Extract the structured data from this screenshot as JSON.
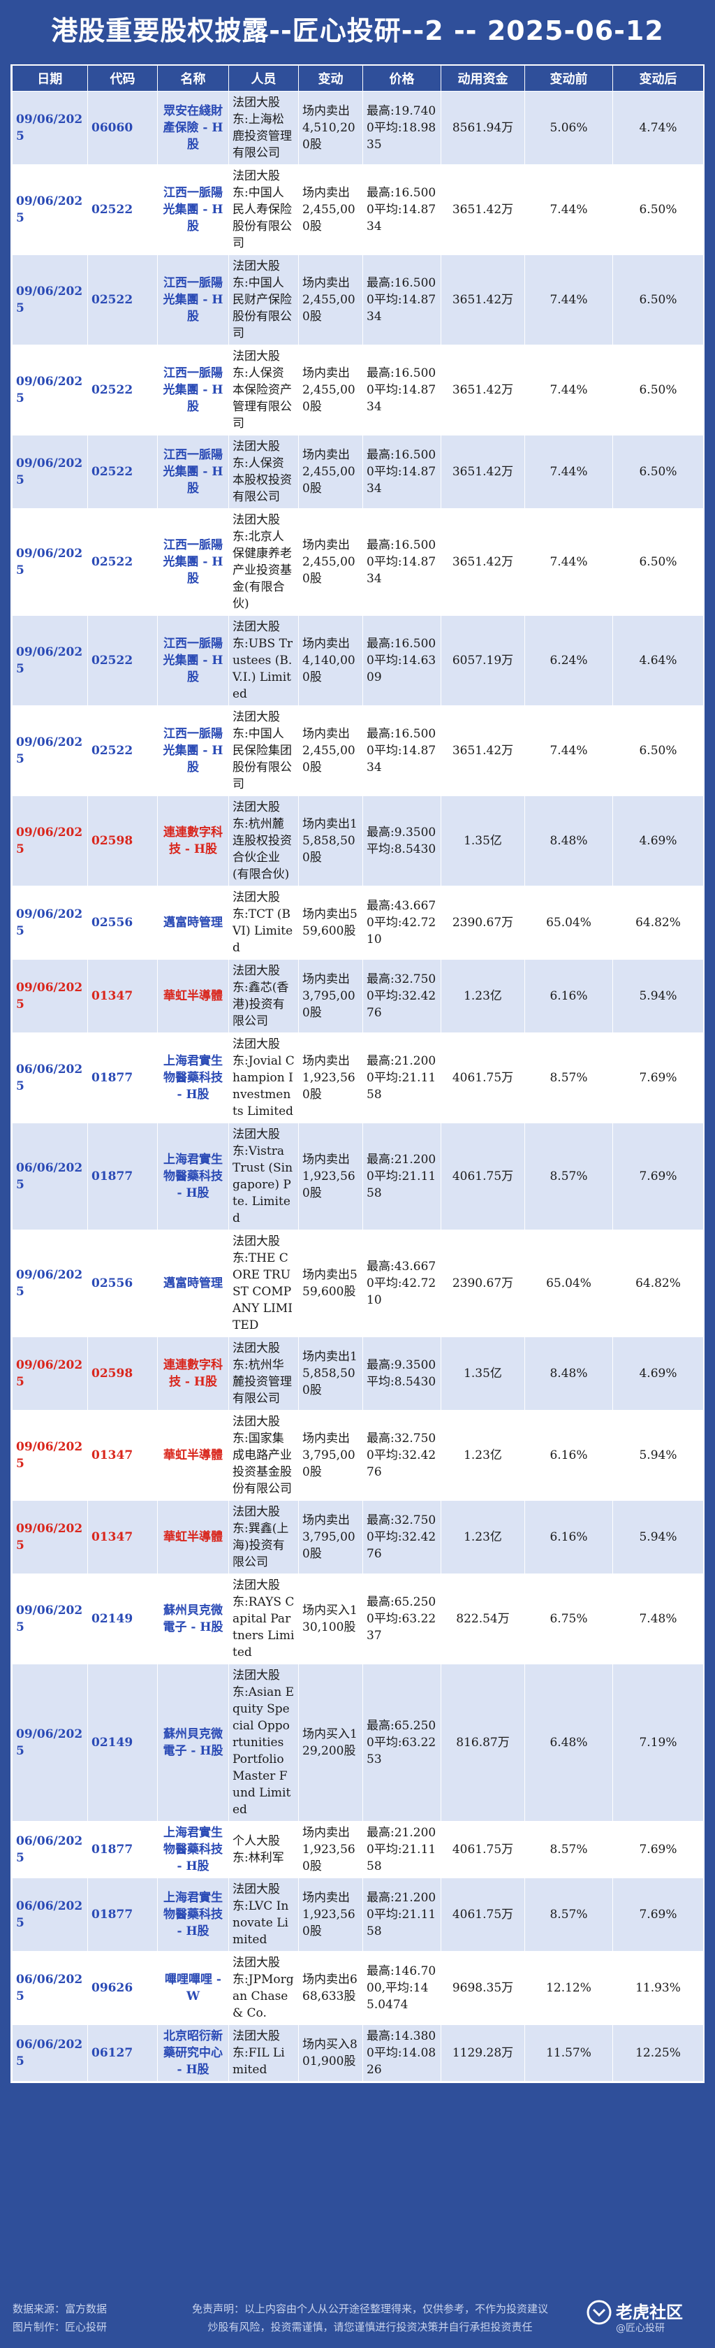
{
  "title": "港股重要股权披露--匠心投研--2 -- 2025-06-12",
  "headers": [
    "日期",
    "代码",
    "名称",
    "人员",
    "变动",
    "价格",
    "动用资金",
    "变动前",
    "变动后"
  ],
  "rows": [
    {
      "date": "09/06/2025",
      "code": "06060",
      "name": "眾安在綫財產保險 - H股",
      "person": "法团大股东:上海松鹿投资管理有限公司",
      "change": "场内卖出4,510,200股",
      "price": "最高:19.7400平均:18.9835",
      "funds": "8561.94万",
      "before": "5.06%",
      "after": "4.74%",
      "red": false
    },
    {
      "date": "09/06/2025",
      "code": "02522",
      "name": "江西一脈陽光集團 - H股",
      "person": "法团大股东:中国人民人寿保险股份有限公司",
      "change": "场内卖出2,455,000股",
      "price": "最高:16.5000平均:14.8734",
      "funds": "3651.42万",
      "before": "7.44%",
      "after": "6.50%",
      "red": false
    },
    {
      "date": "09/06/2025",
      "code": "02522",
      "name": "江西一脈陽光集團 - H股",
      "person": "法团大股东:中国人民财产保险股份有限公司",
      "change": "场内卖出2,455,000股",
      "price": "最高:16.5000平均:14.8734",
      "funds": "3651.42万",
      "before": "7.44%",
      "after": "6.50%",
      "red": false
    },
    {
      "date": "09/06/2025",
      "code": "02522",
      "name": "江西一脈陽光集團 - H股",
      "person": "法团大股东:人保资本保险资产管理有限公司",
      "change": "场内卖出2,455,000股",
      "price": "最高:16.5000平均:14.8734",
      "funds": "3651.42万",
      "before": "7.44%",
      "after": "6.50%",
      "red": false
    },
    {
      "date": "09/06/2025",
      "code": "02522",
      "name": "江西一脈陽光集團 - H股",
      "person": "法团大股东:人保资本股权投资有限公司",
      "change": "场内卖出2,455,000股",
      "price": "最高:16.5000平均:14.8734",
      "funds": "3651.42万",
      "before": "7.44%",
      "after": "6.50%",
      "red": false
    },
    {
      "date": "09/06/2025",
      "code": "02522",
      "name": "江西一脈陽光集團 - H股",
      "person": "法团大股东:北京人保健康养老产业投资基金(有限合伙)",
      "change": "场内卖出2,455,000股",
      "price": "最高:16.5000平均:14.8734",
      "funds": "3651.42万",
      "before": "7.44%",
      "after": "6.50%",
      "red": false
    },
    {
      "date": "09/06/2025",
      "code": "02522",
      "name": "江西一脈陽光集團 - H股",
      "person": "法团大股东:UBS Trustees (B.V.I.) Limited",
      "change": "场内卖出4,140,000股",
      "price": "最高:16.5000平均:14.6309",
      "funds": "6057.19万",
      "before": "6.24%",
      "after": "4.64%",
      "red": false
    },
    {
      "date": "09/06/2025",
      "code": "02522",
      "name": "江西一脈陽光集團 - H股",
      "person": "法团大股东:中国人民保险集团股份有限公司",
      "change": "场内卖出2,455,000股",
      "price": "最高:16.5000平均:14.8734",
      "funds": "3651.42万",
      "before": "7.44%",
      "after": "6.50%",
      "red": false
    },
    {
      "date": "09/06/2025",
      "code": "02598",
      "name": "連連數字科技 - H股",
      "person": "法团大股东:杭州麓连股权投资合伙企业(有限合伙)",
      "change": "场内卖出15,858,500股",
      "price": "最高:9.3500平均:8.5430",
      "funds": "1.35亿",
      "before": "8.48%",
      "after": "4.69%",
      "red": true
    },
    {
      "date": "09/06/2025",
      "code": "02556",
      "name": "邁富時管理",
      "person": "法团大股东:TCT (BVI) Limited",
      "change": "场内卖出559,600股",
      "price": "最高:43.6670平均:42.7210",
      "funds": "2390.67万",
      "before": "65.04%",
      "after": "64.82%",
      "red": false
    },
    {
      "date": "09/06/2025",
      "code": "01347",
      "name": "華虹半導體",
      "person": "法团大股东:鑫芯(香港)投资有限公司",
      "change": "场内卖出3,795,000股",
      "price": "最高:32.7500平均:32.4276",
      "funds": "1.23亿",
      "before": "6.16%",
      "after": "5.94%",
      "red": true
    },
    {
      "date": "06/06/2025",
      "code": "01877",
      "name": "上海君實生物醫藥科技 - H股",
      "person": "法团大股东:Jovial Champion Investments Limited",
      "change": "场内卖出1,923,560股",
      "price": "最高:21.2000平均:21.1158",
      "funds": "4061.75万",
      "before": "8.57%",
      "after": "7.69%",
      "red": false
    },
    {
      "date": "06/06/2025",
      "code": "01877",
      "name": "上海君實生物醫藥科技 - H股",
      "person": "法团大股东:Vistra Trust (Singapore) Pte. Limited",
      "change": "场内卖出1,923,560股",
      "price": "最高:21.2000平均:21.1158",
      "funds": "4061.75万",
      "before": "8.57%",
      "after": "7.69%",
      "red": false
    },
    {
      "date": "09/06/2025",
      "code": "02556",
      "name": "邁富時管理",
      "person": "法团大股东:THE CORE TRUST COMPANY LIMITED",
      "change": "场内卖出559,600股",
      "price": "最高:43.6670平均:42.7210",
      "funds": "2390.67万",
      "before": "65.04%",
      "after": "64.82%",
      "red": false
    },
    {
      "date": "09/06/2025",
      "code": "02598",
      "name": "連連數字科技 - H股",
      "person": "法团大股东:杭州华麓投资管理有限公司",
      "change": "场内卖出15,858,500股",
      "price": "最高:9.3500平均:8.5430",
      "funds": "1.35亿",
      "before": "8.48%",
      "after": "4.69%",
      "red": true
    },
    {
      "date": "09/06/2025",
      "code": "01347",
      "name": "華虹半導體",
      "person": "法团大股东:国家集成电路产业投资基金股份有限公司",
      "change": "场内卖出3,795,000股",
      "price": "最高:32.7500平均:32.4276",
      "funds": "1.23亿",
      "before": "6.16%",
      "after": "5.94%",
      "red": true
    },
    {
      "date": "09/06/2025",
      "code": "01347",
      "name": "華虹半導體",
      "person": "法团大股东:巽鑫(上海)投资有限公司",
      "change": "场内卖出3,795,000股",
      "price": "最高:32.7500平均:32.4276",
      "funds": "1.23亿",
      "before": "6.16%",
      "after": "5.94%",
      "red": true
    },
    {
      "date": "09/06/2025",
      "code": "02149",
      "name": "蘇州貝克微電子 - H股",
      "person": "法团大股东:RAYS Capital Partners Limited",
      "change": "场内买入130,100股",
      "price": "最高:65.2500平均:63.2237",
      "funds": "822.54万",
      "before": "6.75%",
      "after": "7.48%",
      "red": false
    },
    {
      "date": "09/06/2025",
      "code": "02149",
      "name": "蘇州貝克微電子 - H股",
      "person": "法团大股东:Asian Equity Special Opportunities Portfolio Master Fund Limited",
      "change": "场内买入129,200股",
      "price": "最高:65.2500平均:63.2253",
      "funds": "816.87万",
      "before": "6.48%",
      "after": "7.19%",
      "red": false
    },
    {
      "date": "06/06/2025",
      "code": "01877",
      "name": "上海君實生物醫藥科技 - H股",
      "person": "个人大股东:林利军",
      "change": "场内卖出1,923,560股",
      "price": "最高:21.2000平均:21.1158",
      "funds": "4061.75万",
      "before": "8.57%",
      "after": "7.69%",
      "red": false
    },
    {
      "date": "06/06/2025",
      "code": "01877",
      "name": "上海君實生物醫藥科技 - H股",
      "person": "法团大股东:LVC Innovate Limited",
      "change": "场内卖出1,923,560股",
      "price": "最高:21.2000平均:21.1158",
      "funds": "4061.75万",
      "before": "8.57%",
      "after": "7.69%",
      "red": false
    },
    {
      "date": "06/06/2025",
      "code": "09626",
      "name": "嗶哩嗶哩 - W",
      "person": "法团大股东:JPMorgan Chase & Co.",
      "change": "场内卖出668,633股",
      "price": "最高:146.7000,平均:145.0474",
      "funds": "9698.35万",
      "before": "12.12%",
      "after": "11.93%",
      "red": false
    },
    {
      "date": "06/06/2025",
      "code": "06127",
      "name": "北京昭衍新藥研究中心 - H股",
      "person": "法团大股东:FIL Limited",
      "change": "场内买入801,900股",
      "price": "最高:14.3800平均:14.0826",
      "funds": "1129.28万",
      "before": "11.57%",
      "after": "12.25%",
      "red": false
    }
  ],
  "footer": {
    "source": "数据来源：富方数据",
    "maker": "图片制作：匠心投研",
    "disclaimer1": "免责声明：以上内容由个人从公开途径整理得来，仅供参考，不作为投资建议",
    "disclaimer2": "炒股有风险，投资需谨慎，请您谨慎进行投资决策并自行承担投资责任",
    "brand": "老虎社区",
    "brand_sub": "@匠心投研"
  }
}
